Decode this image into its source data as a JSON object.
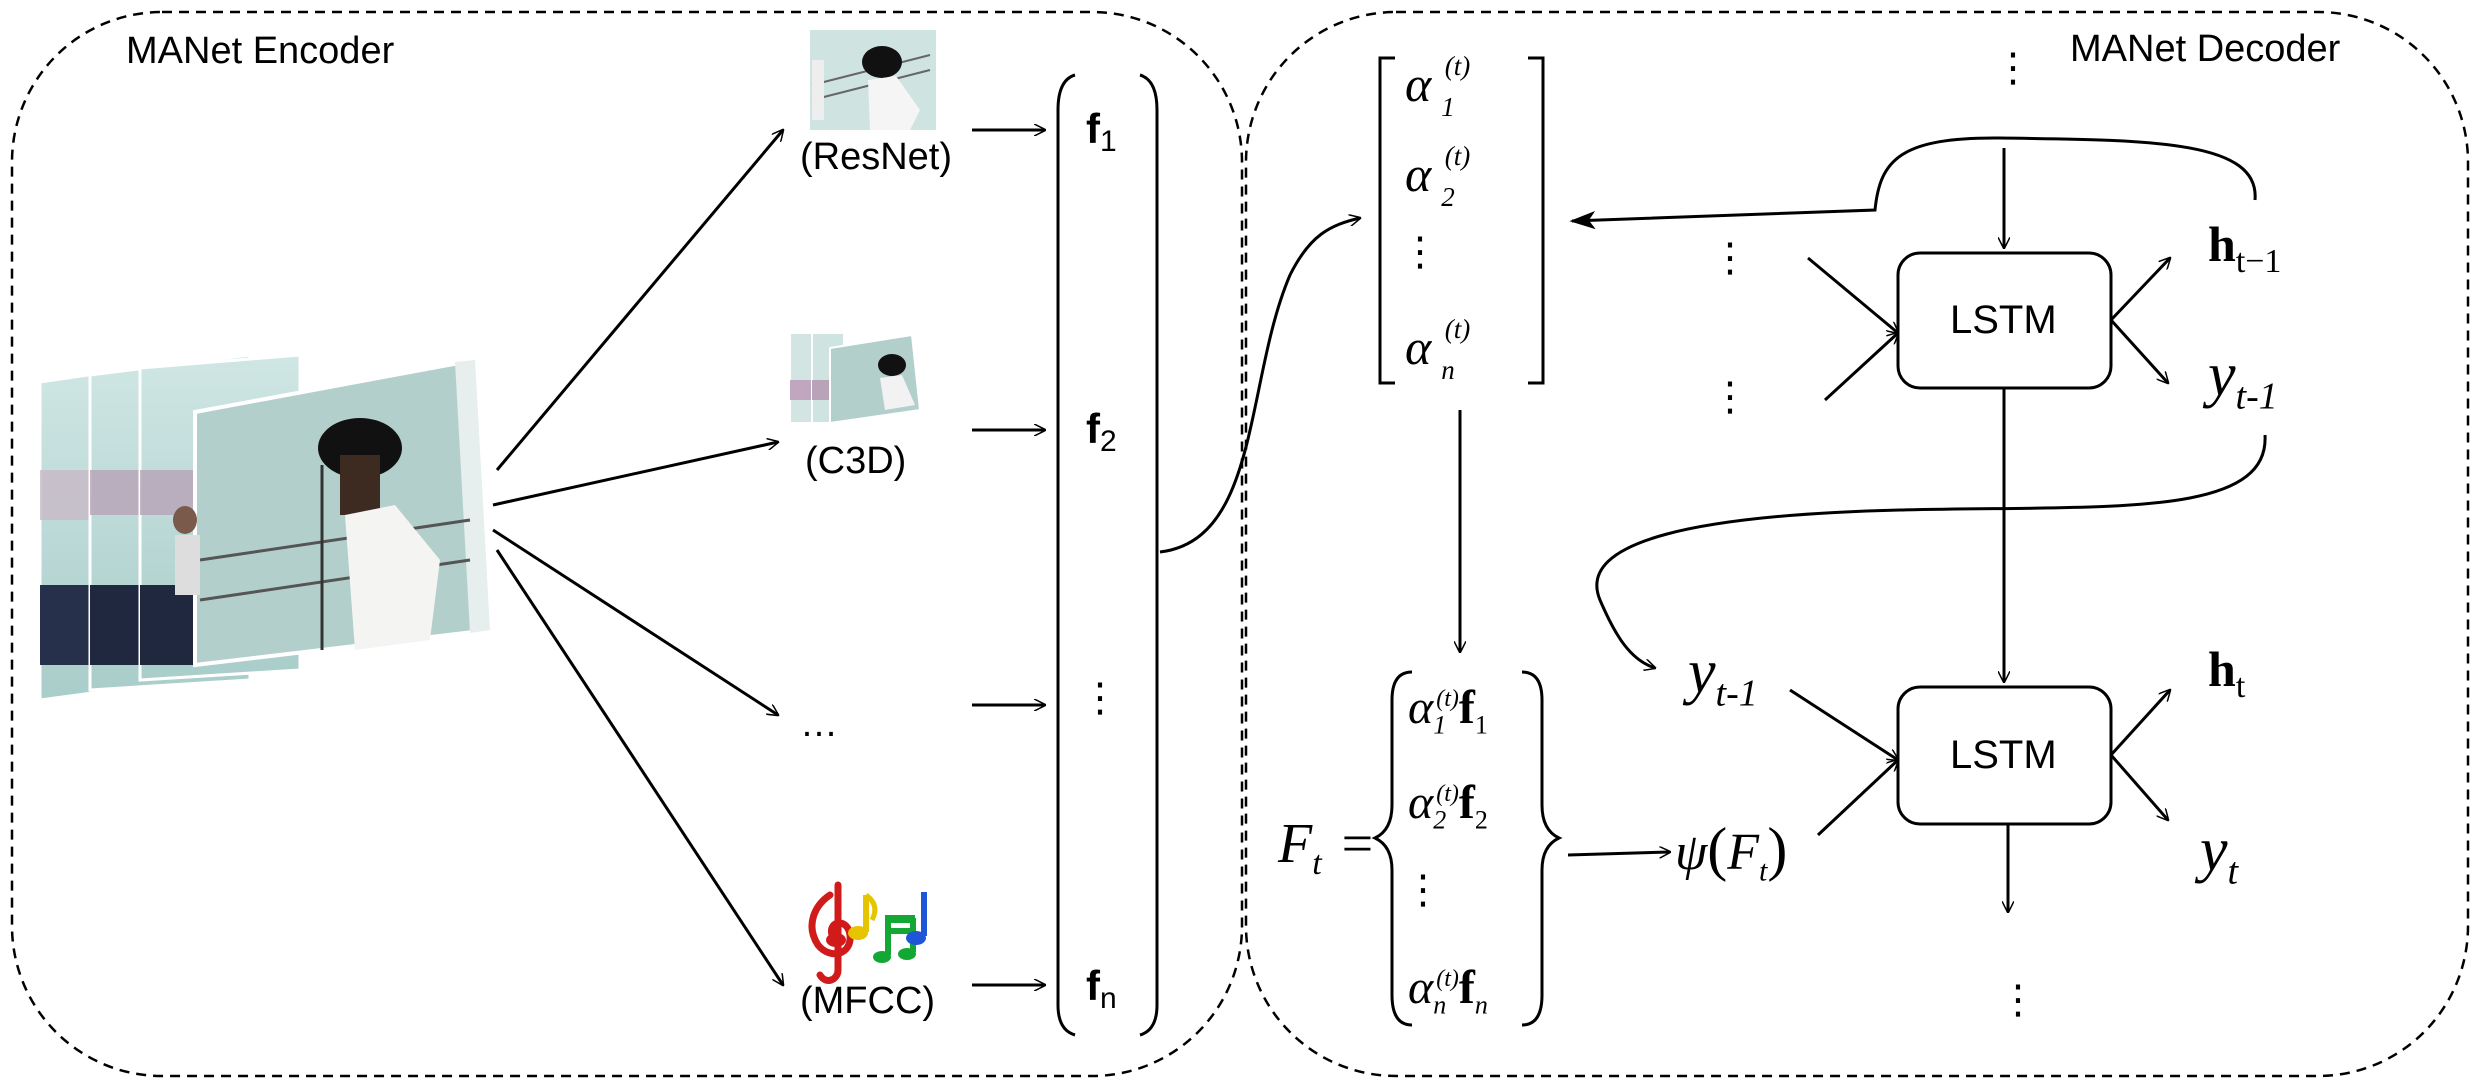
{
  "encoder": {
    "title": "MANet Encoder",
    "sources": [
      {
        "label": "(ResNet)"
      },
      {
        "label": "(C3D)"
      },
      {
        "label": "…"
      },
      {
        "label": "(MFCC)"
      }
    ],
    "features": {
      "f1": {
        "base": "f",
        "sub": "1"
      },
      "f2": {
        "base": "f",
        "sub": "2"
      },
      "vdots": "⋮",
      "fn": {
        "base": "f",
        "sub": "n"
      }
    }
  },
  "decoder": {
    "title": "MANet Decoder",
    "alpha_vector": {
      "a1": {
        "base": "α",
        "sub": "1",
        "sup": "(t)"
      },
      "a2": {
        "base": "α",
        "sub": "2",
        "sup": "(t)"
      },
      "vdots": "⋮",
      "an": {
        "base": "α",
        "sub": "n",
        "sup": "(t)"
      }
    },
    "weighted_set": {
      "lhs": {
        "base": "F",
        "sub": "t",
        "eq": "="
      },
      "r1": {
        "a": "α",
        "a_sub": "1",
        "a_sup": "(t)",
        "f": "f",
        "f_sub": "1"
      },
      "r2": {
        "a": "α",
        "a_sub": "2",
        "a_sup": "(t)",
        "f": "f",
        "f_sub": "2"
      },
      "vdots": "⋮",
      "rn": {
        "a": "α",
        "a_sub": "n",
        "a_sup": "(t)",
        "f": "f",
        "f_sub": "n"
      }
    },
    "psi": {
      "func": "ψ",
      "open": "(",
      "arg": "F",
      "arg_sub": "t",
      "close": ")"
    },
    "lstm_top": {
      "label": "LSTM"
    },
    "lstm_bottom": {
      "label": "LSTM"
    },
    "h_prev": {
      "base": "h",
      "sub": "t−1"
    },
    "y_prev_out": {
      "base": "y",
      "sub": "t-1"
    },
    "y_prev_in": {
      "base": "y",
      "sub": "t-1"
    },
    "h_t": {
      "base": "h",
      "sub": "t"
    },
    "y_t": {
      "base": "y",
      "sub": "t"
    },
    "dots_top": "⋮",
    "dots_bottom": "⋮",
    "dots_mid1": "⋮",
    "dots_mid2": "⋮"
  },
  "colors": {
    "stroke": "#000000",
    "background": "#ffffff"
  },
  "icons": [
    "video-frame-stack",
    "resnet-thumbnail",
    "c3d-thumbnail",
    "music-notes-icon"
  ]
}
